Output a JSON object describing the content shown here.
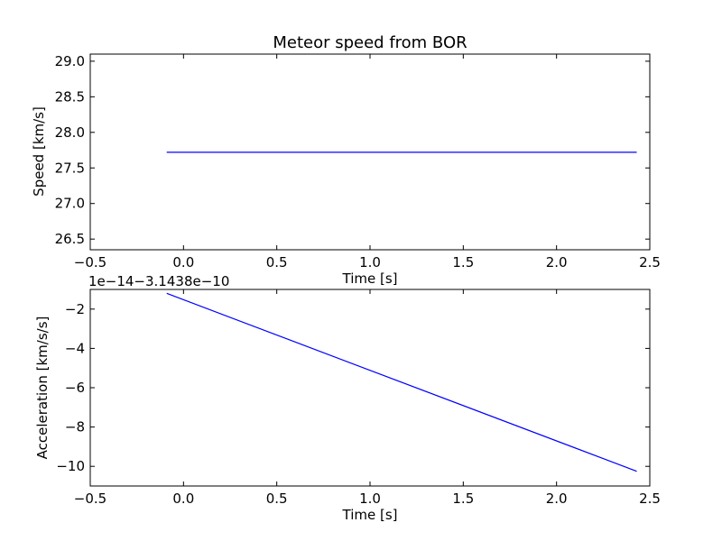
{
  "chart_data": [
    {
      "type": "line",
      "title": "Meteor speed from  BOR",
      "xlabel": "Time [s]",
      "ylabel": "Speed [km/s]",
      "xlim": [
        -0.5,
        2.5
      ],
      "ylim": [
        26.35,
        29.1
      ],
      "xticks": [
        -0.5,
        0.0,
        0.5,
        1.0,
        1.5,
        2.0,
        2.5
      ],
      "xtick_labels": [
        "−0.5",
        "0.0",
        "0.5",
        "1.0",
        "1.5",
        "2.0",
        "2.5"
      ],
      "yticks": [
        26.5,
        27.0,
        27.5,
        28.0,
        28.5,
        29.0
      ],
      "ytick_labels": [
        "26.5",
        "27.0",
        "27.5",
        "28.0",
        "28.5",
        "29.0"
      ],
      "offset_label": "",
      "grid": false,
      "series": [
        {
          "color": "#0000ff",
          "x": [
            -0.09,
            2.43
          ],
          "y": [
            27.72,
            27.72
          ]
        }
      ]
    },
    {
      "type": "line",
      "title": "",
      "xlabel": "Time [s]",
      "ylabel": "Acceleration [km/s/s]",
      "xlim": [
        -0.5,
        2.5
      ],
      "ylim": [
        -11,
        -1
      ],
      "xticks": [
        -0.5,
        0.0,
        0.5,
        1.0,
        1.5,
        2.0,
        2.5
      ],
      "xtick_labels": [
        "−0.5",
        "0.0",
        "0.5",
        "1.0",
        "1.5",
        "2.0",
        "2.5"
      ],
      "yticks": [
        -10,
        -8,
        -6,
        -4,
        -2
      ],
      "ytick_labels": [
        "−10",
        "−8",
        "−6",
        "−4",
        "−2"
      ],
      "offset_label": "1e−14−3.1438e−10",
      "grid": false,
      "series": [
        {
          "color": "#0000ff",
          "x": [
            -0.09,
            2.43
          ],
          "y": [
            -1.2,
            -10.25
          ]
        }
      ]
    }
  ]
}
